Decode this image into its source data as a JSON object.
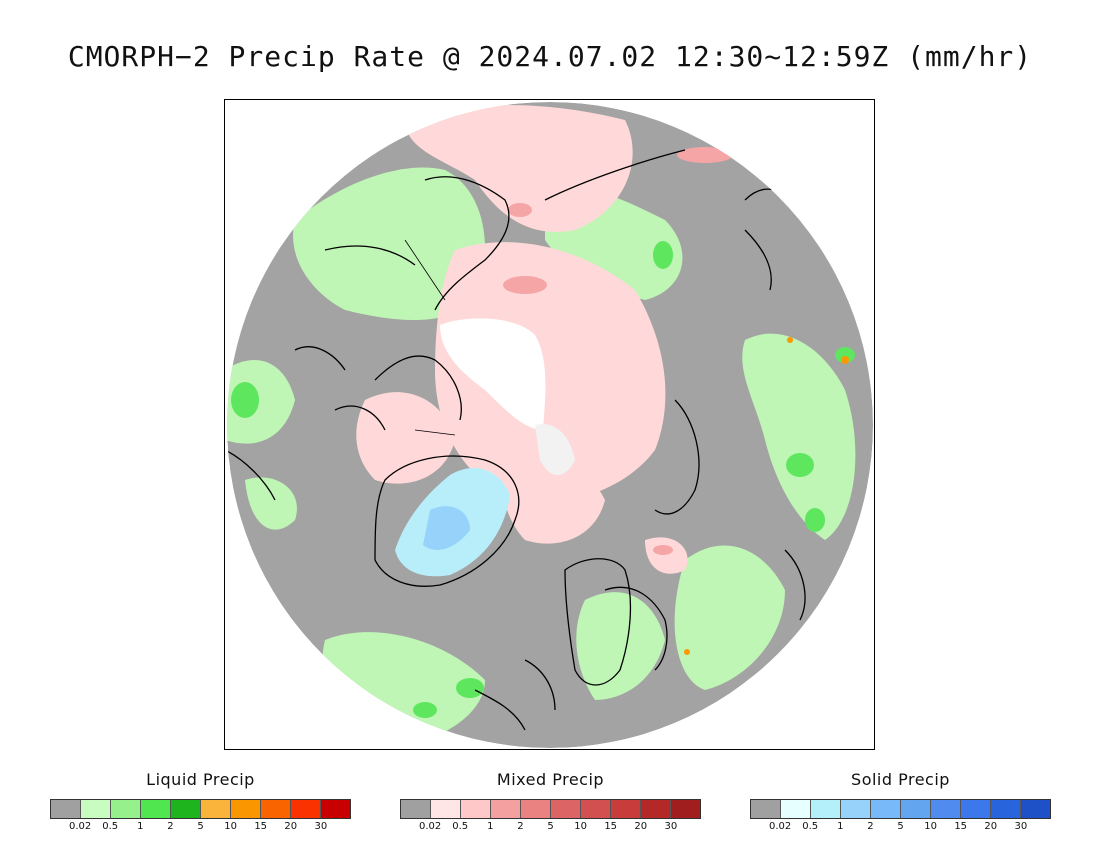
{
  "title": "CMORPH−2 Precip Rate @ 2024.07.02 12:30~12:59Z (mm/hr)",
  "legends": [
    {
      "title": "Liquid Precip",
      "colors": [
        "#a0a0a0",
        "#c8fcc0",
        "#96f08c",
        "#50e650",
        "#1eb41e",
        "#fab43c",
        "#fa9600",
        "#fa6400",
        "#fa3200",
        "#c80000"
      ],
      "ticks": [
        "0.02",
        "0.5",
        "1",
        "2",
        "5",
        "10",
        "15",
        "20",
        "30"
      ]
    },
    {
      "title": "Mixed Precip",
      "colors": [
        "#a0a0a0",
        "#ffe6e6",
        "#ffc8c8",
        "#f5a0a0",
        "#eb8282",
        "#dc6464",
        "#d25050",
        "#c83c3c",
        "#b42828",
        "#a01e1e"
      ],
      "ticks": [
        "0.02",
        "0.5",
        "1",
        "2",
        "5",
        "10",
        "15",
        "20",
        "30"
      ]
    },
    {
      "title": "Solid Precip",
      "colors": [
        "#a0a0a0",
        "#e6ffff",
        "#b4f0fa",
        "#96d2fa",
        "#78b9fa",
        "#64a5f0",
        "#508cf0",
        "#3c78eb",
        "#2864dc",
        "#1e50c8"
      ],
      "ticks": [
        "0.02",
        "0.5",
        "1",
        "2",
        "5",
        "10",
        "15",
        "20",
        "30"
      ]
    }
  ]
}
